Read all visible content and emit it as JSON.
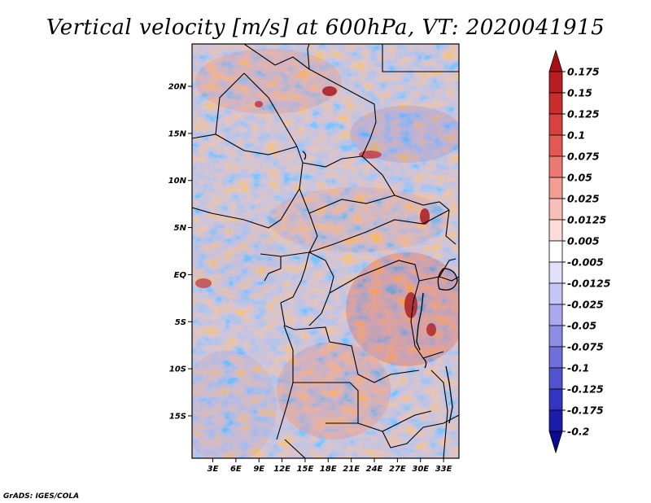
{
  "title": "Vertical velocity [m/s] at 600hPa, VT: 2020041915",
  "credit": "GrADS: IGES/COLA",
  "map": {
    "lat_labels": [
      "20N",
      "15N",
      "10N",
      "5N",
      "EQ",
      "5S",
      "10S",
      "15S"
    ],
    "lat_values": [
      20,
      15,
      10,
      5,
      0,
      -5,
      -10,
      -15
    ],
    "lon_labels": [
      "3E",
      "6E",
      "9E",
      "12E",
      "15E",
      "18E",
      "21E",
      "24E",
      "27E",
      "30E",
      "33E"
    ],
    "lon_values": [
      3,
      6,
      9,
      12,
      15,
      18,
      21,
      24,
      27,
      30,
      33
    ],
    "lon_range": [
      0.3,
      35.0
    ],
    "lat_range": [
      -19.5,
      24.5
    ]
  },
  "colorbar": {
    "labels": [
      "0.175",
      "0.15",
      "0.125",
      "0.1",
      "0.075",
      "0.05",
      "0.025",
      "0.0125",
      "0.005",
      "-0.005",
      "-0.0125",
      "-0.025",
      "-0.05",
      "-0.075",
      "-0.1",
      "-0.125",
      "-0.175",
      "-0.2"
    ],
    "colors": [
      "#a50f15",
      "#b81d22",
      "#c92d2d",
      "#d8413f",
      "#e35a55",
      "#ec7a72",
      "#f39d94",
      "#f8bfb8",
      "#fcdcd8",
      "#ffffff",
      "#e0e0fb",
      "#c6c6f6",
      "#a9a9ee",
      "#8c8ce6",
      "#6f6fdc",
      "#5252d0",
      "#3434c2",
      "#1c1cab",
      "#0b0b8c"
    ]
  }
}
